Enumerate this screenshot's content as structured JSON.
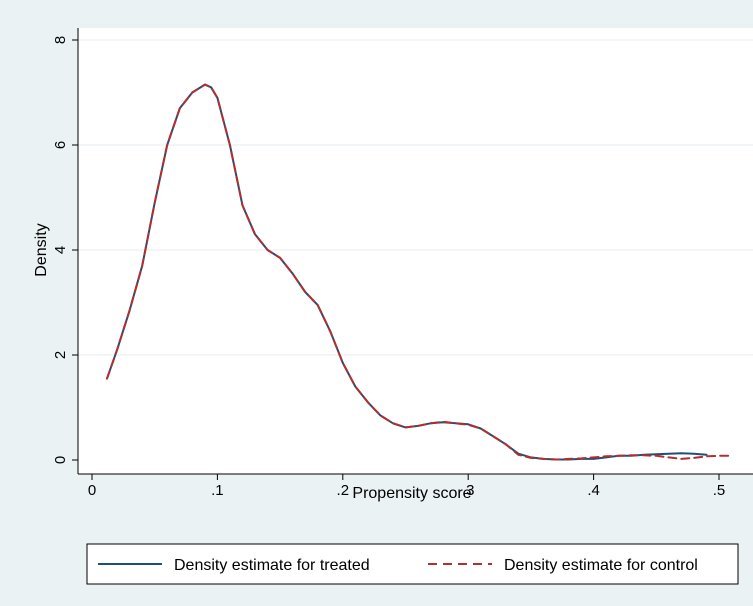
{
  "chart_data": {
    "type": "line",
    "title": "",
    "xlabel": "Propensity score",
    "ylabel": "Density",
    "xlim": [
      0,
      0.52
    ],
    "ylim": [
      0,
      8
    ],
    "x_ticks": [
      0,
      0.1,
      0.2,
      0.3,
      0.4,
      0.5
    ],
    "x_tick_labels": [
      "0",
      ".1",
      ".2",
      ".3",
      ".4",
      ".5"
    ],
    "y_ticks": [
      0,
      2,
      4,
      6,
      8
    ],
    "y_tick_labels": [
      "0",
      "2",
      "4",
      "6",
      "8"
    ],
    "grid": "horizontal",
    "legend_position": "bottom",
    "series": [
      {
        "name": "Density estimate for treated",
        "color": "#1f4e79",
        "style": "solid",
        "x": [
          0.012,
          0.02,
          0.03,
          0.04,
          0.05,
          0.06,
          0.07,
          0.08,
          0.09,
          0.095,
          0.1,
          0.11,
          0.12,
          0.13,
          0.14,
          0.15,
          0.16,
          0.17,
          0.18,
          0.19,
          0.2,
          0.21,
          0.22,
          0.23,
          0.24,
          0.25,
          0.26,
          0.27,
          0.28,
          0.29,
          0.3,
          0.31,
          0.32,
          0.33,
          0.34,
          0.35,
          0.36,
          0.37,
          0.38,
          0.39,
          0.4,
          0.41,
          0.42,
          0.43,
          0.44,
          0.45,
          0.46,
          0.47,
          0.48,
          0.49
        ],
        "y": [
          1.55,
          2.1,
          2.85,
          3.7,
          4.9,
          6.0,
          6.7,
          7.0,
          7.15,
          7.1,
          6.9,
          6.0,
          4.85,
          4.3,
          4.0,
          3.85,
          3.55,
          3.2,
          2.95,
          2.45,
          1.85,
          1.4,
          1.1,
          0.85,
          0.7,
          0.62,
          0.65,
          0.7,
          0.72,
          0.7,
          0.68,
          0.6,
          0.45,
          0.3,
          0.12,
          0.05,
          0.02,
          0.01,
          0.01,
          0.02,
          0.02,
          0.05,
          0.08,
          0.08,
          0.1,
          0.11,
          0.12,
          0.13,
          0.12,
          0.1
        ]
      },
      {
        "name": "Density estimate for control",
        "color": "#b03030",
        "style": "dashed",
        "x": [
          0.012,
          0.02,
          0.03,
          0.04,
          0.05,
          0.06,
          0.07,
          0.08,
          0.09,
          0.095,
          0.1,
          0.11,
          0.12,
          0.13,
          0.14,
          0.15,
          0.16,
          0.17,
          0.18,
          0.19,
          0.2,
          0.21,
          0.22,
          0.23,
          0.24,
          0.25,
          0.26,
          0.27,
          0.28,
          0.29,
          0.3,
          0.31,
          0.32,
          0.33,
          0.34,
          0.35,
          0.36,
          0.37,
          0.38,
          0.39,
          0.4,
          0.41,
          0.42,
          0.43,
          0.44,
          0.45,
          0.46,
          0.47,
          0.48,
          0.49,
          0.5,
          0.51
        ],
        "y": [
          1.55,
          2.1,
          2.85,
          3.7,
          4.9,
          6.0,
          6.7,
          7.0,
          7.15,
          7.1,
          6.9,
          6.0,
          4.85,
          4.3,
          4.0,
          3.85,
          3.55,
          3.2,
          2.95,
          2.45,
          1.85,
          1.4,
          1.1,
          0.85,
          0.7,
          0.62,
          0.65,
          0.7,
          0.73,
          0.7,
          0.67,
          0.6,
          0.45,
          0.3,
          0.1,
          0.04,
          0.02,
          0.01,
          0.02,
          0.03,
          0.05,
          0.07,
          0.08,
          0.09,
          0.09,
          0.08,
          0.05,
          0.02,
          0.04,
          0.07,
          0.08,
          0.08
        ]
      }
    ]
  }
}
